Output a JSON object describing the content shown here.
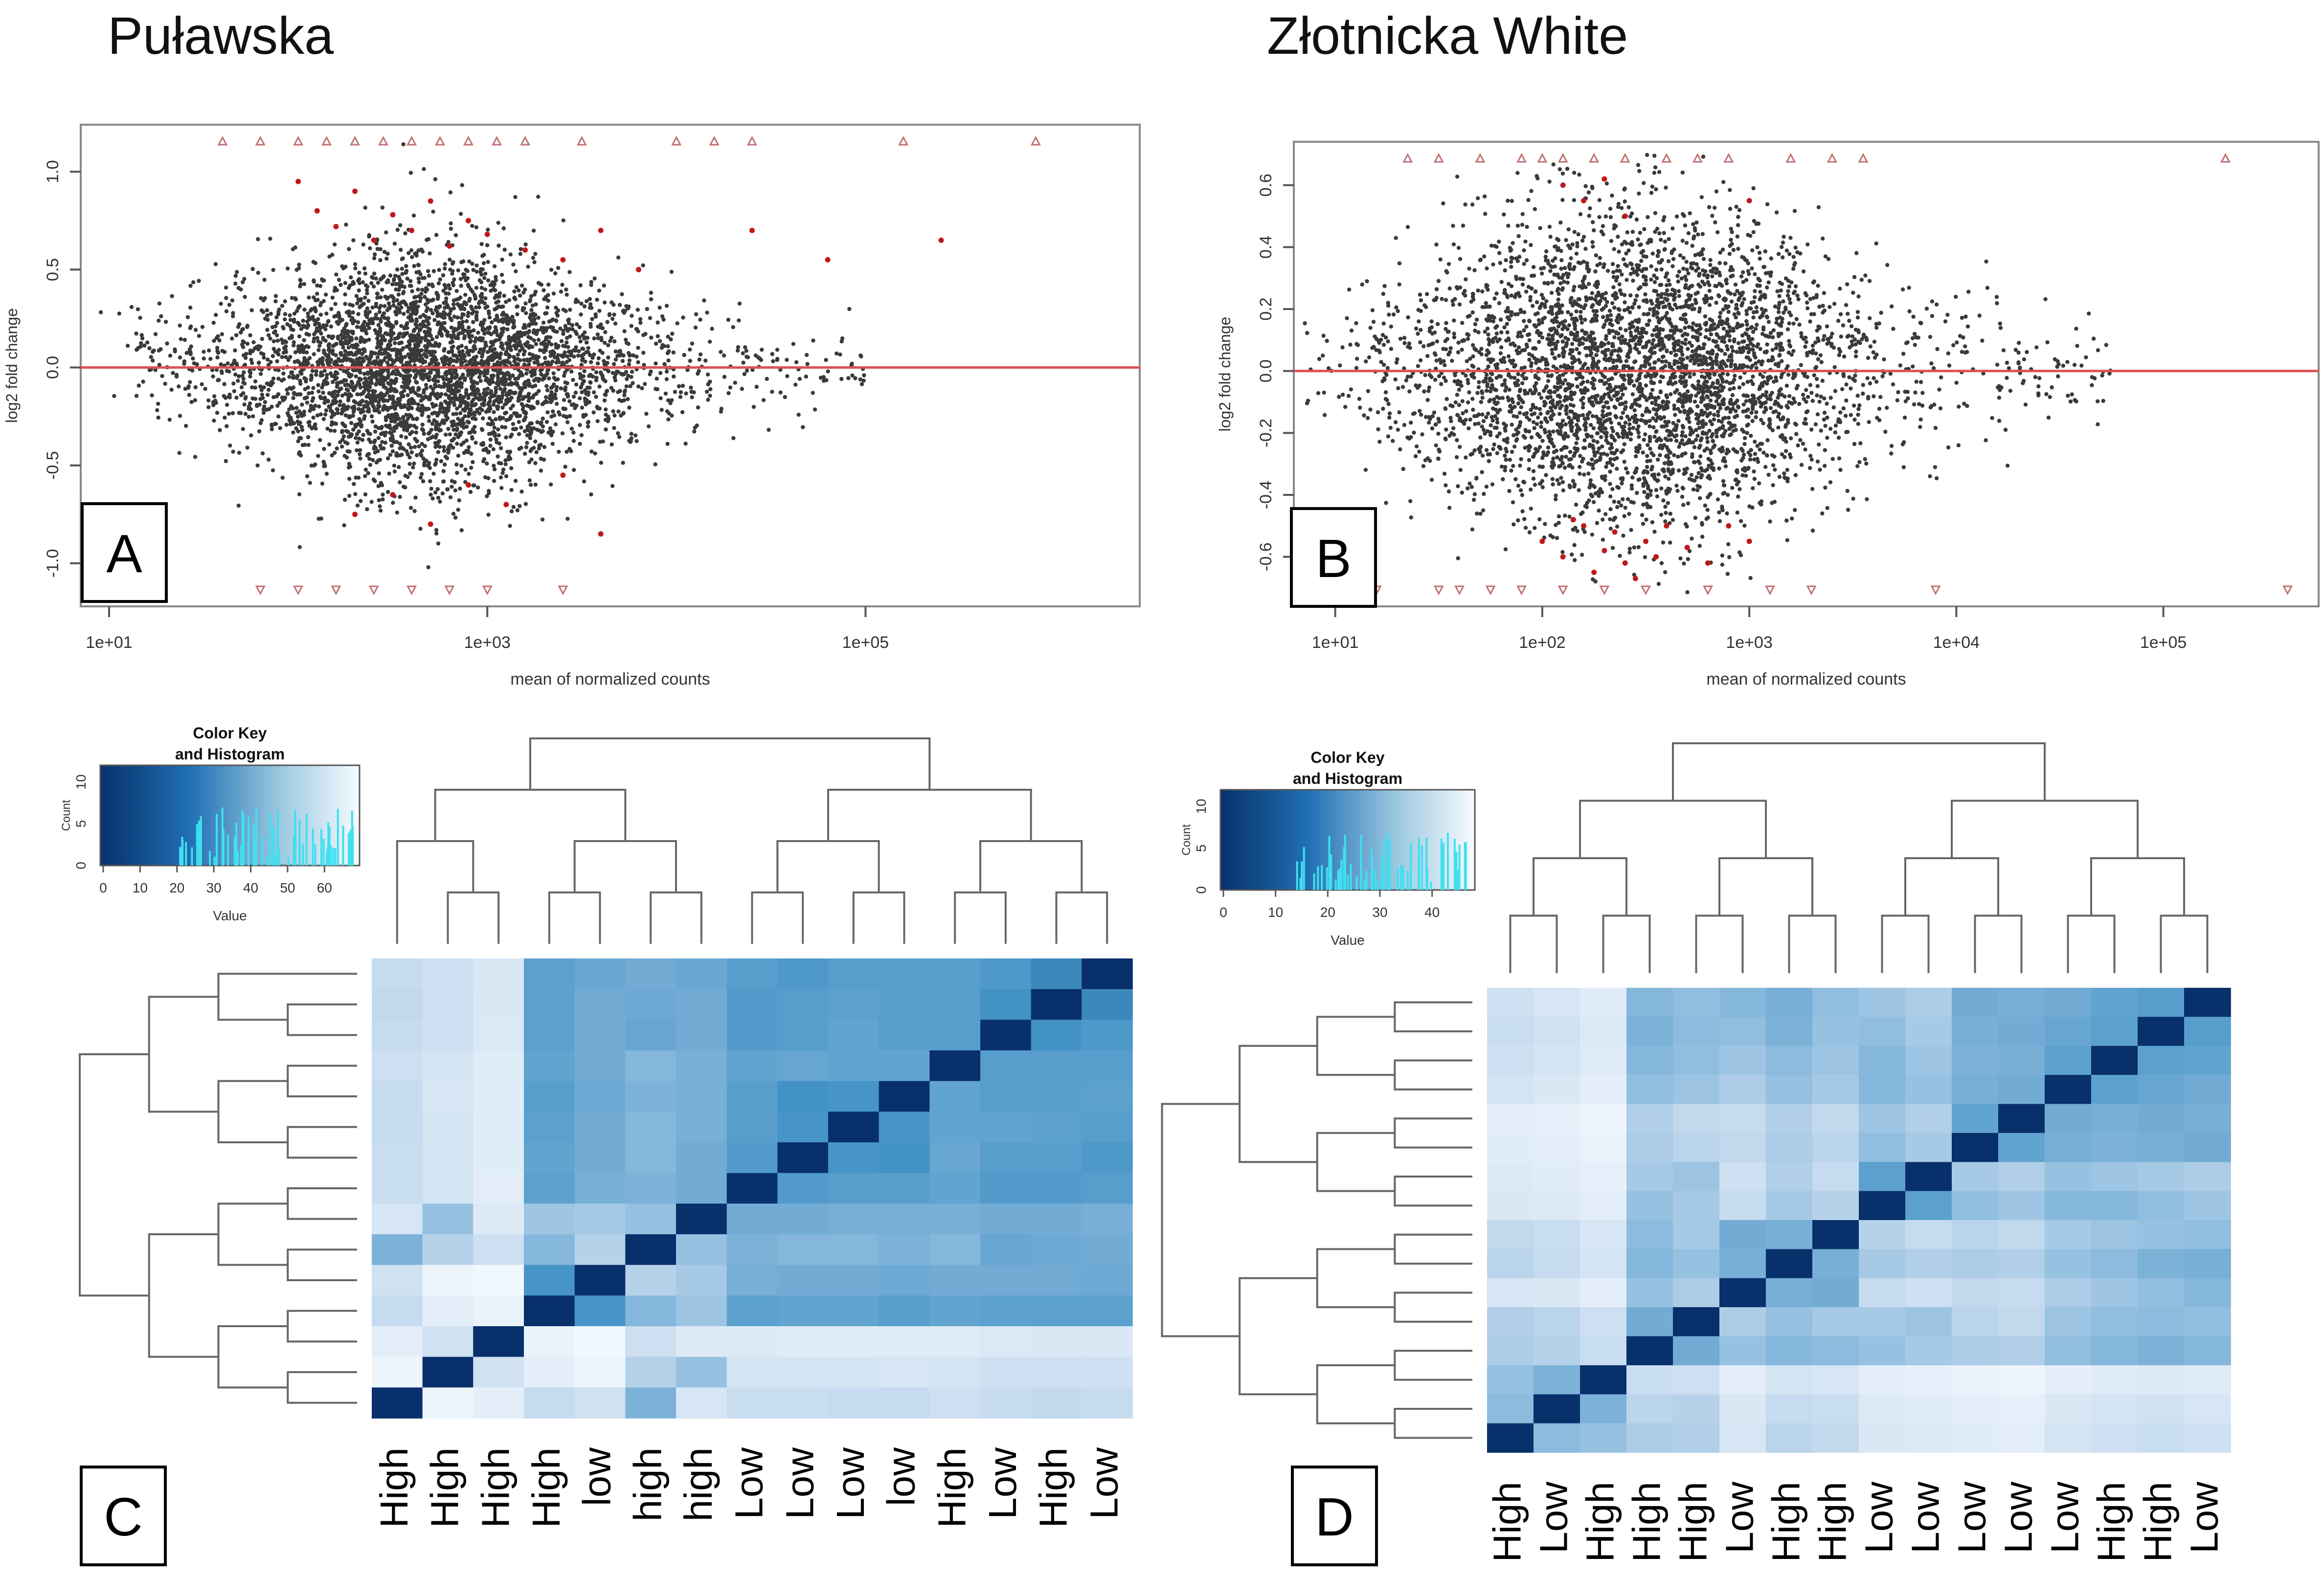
{
  "figure_titles": {
    "left": "Puławska",
    "right": "Złotnicka White"
  },
  "panel_letters": {
    "a": "A",
    "b": "B",
    "c": "C",
    "d": "D"
  },
  "colors": {
    "points": "#3a3a3a",
    "significant": "#c0181a",
    "hline": "#e05050",
    "heat_dark": "#08306b",
    "heat_light": "#f7fbff"
  },
  "chart_data": [
    {
      "id": "A",
      "type": "scatter",
      "title": "",
      "xlabel": "mean of normalized counts",
      "ylabel": "log2 fold change",
      "xscale": "log10",
      "xlim_log10": [
        0.85,
        6.45
      ],
      "ylim": [
        -1.22,
        1.24
      ],
      "x_ticks": [
        {
          "v": 1,
          "label": "1e+01"
        },
        {
          "v": 3,
          "label": "1e+03"
        },
        {
          "v": 5,
          "label": "1e+05"
        }
      ],
      "y_ticks": [
        {
          "v": -1.0,
          "label": "-1.0"
        },
        {
          "v": -0.5,
          "label": "-0.5"
        },
        {
          "v": 0.0,
          "label": "0.0"
        },
        {
          "v": 0.5,
          "label": "0.5"
        },
        {
          "v": 1.0,
          "label": "1.0"
        }
      ],
      "hline_y": 0,
      "cloud": {
        "center_log10": 2.7,
        "sd_log10": 0.55,
        "sd_y": 0.2,
        "n": 4200
      },
      "significant_up": [
        [
          2.0,
          0.95
        ],
        [
          2.1,
          0.8
        ],
        [
          2.2,
          0.72
        ],
        [
          2.3,
          0.9
        ],
        [
          2.4,
          0.65
        ],
        [
          2.5,
          0.78
        ],
        [
          2.6,
          0.7
        ],
        [
          2.7,
          0.85
        ],
        [
          2.8,
          0.62
        ],
        [
          2.9,
          0.75
        ],
        [
          3.0,
          0.68
        ],
        [
          3.2,
          0.6
        ],
        [
          3.4,
          0.55
        ],
        [
          3.6,
          0.7
        ],
        [
          3.8,
          0.5
        ],
        [
          4.4,
          0.7
        ],
        [
          4.8,
          0.55
        ],
        [
          5.4,
          0.65
        ]
      ],
      "significant_down": [
        [
          2.3,
          -0.75
        ],
        [
          2.5,
          -0.65
        ],
        [
          2.7,
          -0.8
        ],
        [
          2.9,
          -0.6
        ],
        [
          3.1,
          -0.7
        ],
        [
          3.4,
          -0.55
        ],
        [
          3.6,
          -0.85
        ]
      ],
      "outliers_top_log10": [
        1.6,
        1.8,
        2.0,
        2.15,
        2.3,
        2.45,
        2.6,
        2.75,
        2.9,
        3.05,
        3.2,
        3.5,
        4.0,
        4.2,
        4.4,
        5.2,
        5.9
      ],
      "outliers_bottom_log10": [
        1.8,
        2.0,
        2.2,
        2.4,
        2.6,
        2.8,
        3.0,
        3.4
      ]
    },
    {
      "id": "B",
      "type": "scatter",
      "title": "",
      "xlabel": "mean of normalized counts",
      "ylabel": "log2 fold change",
      "xscale": "log10",
      "xlim_log10": [
        0.8,
        5.75
      ],
      "ylim": [
        -0.76,
        0.74
      ],
      "x_ticks": [
        {
          "v": 1,
          "label": "1e+01"
        },
        {
          "v": 2,
          "label": "1e+02"
        },
        {
          "v": 3,
          "label": "1e+03"
        },
        {
          "v": 4,
          "label": "1e+04"
        },
        {
          "v": 5,
          "label": "1e+05"
        }
      ],
      "y_ticks": [
        {
          "v": -0.6,
          "label": "-0.6"
        },
        {
          "v": -0.4,
          "label": "-0.4"
        },
        {
          "v": -0.2,
          "label": "-0.2"
        },
        {
          "v": 0.0,
          "label": "0.0"
        },
        {
          "v": 0.2,
          "label": "0.2"
        },
        {
          "v": 0.4,
          "label": "0.4"
        },
        {
          "v": 0.6,
          "label": "0.6"
        }
      ],
      "hline_y": 0,
      "cloud": {
        "center_log10": 2.45,
        "sd_log10": 0.55,
        "sd_y": 0.18,
        "n": 4200
      },
      "significant_up": [
        [
          2.1,
          0.6
        ],
        [
          2.2,
          0.55
        ],
        [
          2.3,
          0.62
        ],
        [
          2.4,
          0.5
        ],
        [
          3.0,
          0.55
        ]
      ],
      "significant_down": [
        [
          2.0,
          -0.55
        ],
        [
          2.1,
          -0.6
        ],
        [
          2.2,
          -0.5
        ],
        [
          2.25,
          -0.65
        ],
        [
          2.3,
          -0.58
        ],
        [
          2.35,
          -0.52
        ],
        [
          2.4,
          -0.62
        ],
        [
          2.5,
          -0.55
        ],
        [
          2.55,
          -0.6
        ],
        [
          2.6,
          -0.5
        ],
        [
          2.7,
          -0.57
        ],
        [
          2.8,
          -0.62
        ],
        [
          2.9,
          -0.5
        ],
        [
          3.0,
          -0.55
        ],
        [
          2.15,
          -0.48
        ],
        [
          2.45,
          -0.67
        ]
      ],
      "outliers_top_log10": [
        1.35,
        1.5,
        1.7,
        1.9,
        2.0,
        2.1,
        2.25,
        2.4,
        2.6,
        2.75,
        2.9,
        3.2,
        3.4,
        3.55,
        5.3
      ],
      "outliers_bottom_log10": [
        1.2,
        1.5,
        1.6,
        1.75,
        1.9,
        2.1,
        2.3,
        2.5,
        2.8,
        3.1,
        3.3,
        3.9,
        5.6
      ]
    },
    {
      "id": "C",
      "type": "heatmap",
      "color_key": {
        "title": "Color Key",
        "subtitle": "and Histogram",
        "xlabel": "Value",
        "ylabel": "Count",
        "x_ticks": [
          "0",
          "10",
          "20",
          "30",
          "40",
          "50",
          "60"
        ],
        "y_ticks": [
          "0",
          "5",
          "10"
        ]
      },
      "column_labels": [
        "High",
        "High",
        "High",
        "High",
        "low",
        "high",
        "high",
        "Low",
        "Low",
        "Low",
        "low",
        "High",
        "Low",
        "High",
        "Low"
      ],
      "values": [
        [
          0.3,
          0.25,
          0.18,
          0.7,
          0.65,
          0.62,
          0.65,
          0.72,
          0.75,
          0.72,
          0.72,
          0.72,
          0.75,
          0.82,
          1.0
        ],
        [
          0.32,
          0.26,
          0.18,
          0.7,
          0.62,
          0.64,
          0.62,
          0.74,
          0.72,
          0.7,
          0.72,
          0.72,
          0.8,
          1.0,
          0.82
        ],
        [
          0.3,
          0.25,
          0.17,
          0.7,
          0.62,
          0.66,
          0.62,
          0.74,
          0.72,
          0.68,
          0.72,
          0.72,
          1.0,
          0.8,
          0.75
        ],
        [
          0.26,
          0.22,
          0.15,
          0.68,
          0.62,
          0.55,
          0.6,
          0.68,
          0.66,
          0.68,
          0.68,
          1.0,
          0.72,
          0.72,
          0.72
        ],
        [
          0.3,
          0.2,
          0.14,
          0.72,
          0.64,
          0.58,
          0.6,
          0.72,
          0.8,
          0.78,
          1.0,
          0.68,
          0.72,
          0.72,
          0.7
        ],
        [
          0.3,
          0.22,
          0.14,
          0.7,
          0.62,
          0.55,
          0.6,
          0.72,
          0.78,
          1.0,
          0.78,
          0.68,
          0.68,
          0.7,
          0.72
        ],
        [
          0.28,
          0.22,
          0.14,
          0.68,
          0.62,
          0.55,
          0.62,
          0.74,
          1.0,
          0.78,
          0.8,
          0.66,
          0.72,
          0.72,
          0.75
        ],
        [
          0.28,
          0.22,
          0.13,
          0.7,
          0.6,
          0.58,
          0.62,
          1.0,
          0.74,
          0.72,
          0.72,
          0.68,
          0.74,
          0.74,
          0.72
        ],
        [
          0.2,
          0.48,
          0.16,
          0.45,
          0.42,
          0.48,
          1.0,
          0.62,
          0.62,
          0.6,
          0.6,
          0.6,
          0.62,
          0.62,
          0.6
        ],
        [
          0.58,
          0.36,
          0.26,
          0.55,
          0.36,
          1.0,
          0.48,
          0.58,
          0.55,
          0.55,
          0.58,
          0.55,
          0.66,
          0.64,
          0.62
        ],
        [
          0.24,
          0.06,
          0.04,
          0.78,
          1.0,
          0.36,
          0.42,
          0.6,
          0.62,
          0.62,
          0.64,
          0.62,
          0.62,
          0.62,
          0.64
        ],
        [
          0.3,
          0.12,
          0.08,
          1.0,
          0.78,
          0.55,
          0.45,
          0.7,
          0.68,
          0.68,
          0.72,
          0.68,
          0.7,
          0.7,
          0.7
        ],
        [
          0.12,
          0.24,
          1.0,
          0.08,
          0.04,
          0.26,
          0.16,
          0.16,
          0.14,
          0.14,
          0.14,
          0.15,
          0.17,
          0.18,
          0.18
        ],
        [
          0.06,
          1.0,
          0.24,
          0.12,
          0.06,
          0.36,
          0.48,
          0.22,
          0.22,
          0.22,
          0.2,
          0.22,
          0.26,
          0.25,
          0.25
        ],
        [
          1.0,
          0.06,
          0.12,
          0.3,
          0.24,
          0.58,
          0.2,
          0.28,
          0.28,
          0.3,
          0.3,
          0.26,
          0.3,
          0.32,
          0.3
        ]
      ]
    },
    {
      "id": "D",
      "type": "heatmap",
      "color_key": {
        "title": "Color Key",
        "subtitle": "and Histogram",
        "xlabel": "Value",
        "ylabel": "Count",
        "x_ticks": [
          "0",
          "10",
          "20",
          "30",
          "40"
        ],
        "y_ticks": [
          "0",
          "5",
          "10"
        ]
      },
      "column_labels": [
        "High",
        "Low",
        "High",
        "High",
        "High",
        "Low",
        "High",
        "High",
        "Low",
        "Low",
        "Low",
        "Low",
        "Low",
        "High",
        "High",
        "Low"
      ],
      "values": [
        [
          0.25,
          0.2,
          0.15,
          0.55,
          0.5,
          0.55,
          0.6,
          0.5,
          0.45,
          0.4,
          0.62,
          0.6,
          0.62,
          0.68,
          0.72,
          1.0
        ],
        [
          0.28,
          0.24,
          0.16,
          0.58,
          0.52,
          0.5,
          0.58,
          0.48,
          0.5,
          0.42,
          0.6,
          0.62,
          0.66,
          0.7,
          1.0,
          0.72
        ],
        [
          0.26,
          0.22,
          0.15,
          0.55,
          0.5,
          0.45,
          0.52,
          0.46,
          0.55,
          0.45,
          0.58,
          0.6,
          0.7,
          1.0,
          0.7,
          0.68
        ],
        [
          0.22,
          0.18,
          0.12,
          0.5,
          0.46,
          0.4,
          0.48,
          0.42,
          0.55,
          0.48,
          0.6,
          0.62,
          1.0,
          0.7,
          0.66,
          0.62
        ],
        [
          0.12,
          0.1,
          0.06,
          0.38,
          0.32,
          0.3,
          0.38,
          0.32,
          0.45,
          0.38,
          0.68,
          1.0,
          0.62,
          0.6,
          0.62,
          0.6
        ],
        [
          0.14,
          0.12,
          0.08,
          0.4,
          0.35,
          0.32,
          0.4,
          0.35,
          0.5,
          0.42,
          1.0,
          0.68,
          0.6,
          0.58,
          0.6,
          0.62
        ],
        [
          0.16,
          0.14,
          0.1,
          0.42,
          0.46,
          0.25,
          0.38,
          0.3,
          0.7,
          1.0,
          0.42,
          0.38,
          0.48,
          0.45,
          0.42,
          0.4
        ],
        [
          0.18,
          0.16,
          0.12,
          0.48,
          0.42,
          0.3,
          0.42,
          0.36,
          1.0,
          0.7,
          0.5,
          0.45,
          0.55,
          0.55,
          0.5,
          0.45
        ],
        [
          0.32,
          0.28,
          0.2,
          0.52,
          0.42,
          0.62,
          0.6,
          1.0,
          0.36,
          0.3,
          0.35,
          0.32,
          0.42,
          0.46,
          0.48,
          0.5
        ],
        [
          0.35,
          0.3,
          0.22,
          0.55,
          0.48,
          0.6,
          1.0,
          0.6,
          0.42,
          0.38,
          0.4,
          0.38,
          0.48,
          0.52,
          0.58,
          0.6
        ],
        [
          0.2,
          0.18,
          0.12,
          0.48,
          0.4,
          1.0,
          0.6,
          0.62,
          0.3,
          0.25,
          0.32,
          0.3,
          0.4,
          0.45,
          0.5,
          0.55
        ],
        [
          0.38,
          0.34,
          0.26,
          0.62,
          1.0,
          0.4,
          0.48,
          0.42,
          0.42,
          0.46,
          0.35,
          0.32,
          0.46,
          0.5,
          0.52,
          0.5
        ],
        [
          0.4,
          0.36,
          0.28,
          1.0,
          0.62,
          0.48,
          0.55,
          0.52,
          0.48,
          0.42,
          0.4,
          0.38,
          0.5,
          0.55,
          0.58,
          0.55
        ],
        [
          0.48,
          0.58,
          1.0,
          0.28,
          0.26,
          0.12,
          0.22,
          0.2,
          0.12,
          0.1,
          0.08,
          0.06,
          0.12,
          0.15,
          0.16,
          0.15
        ],
        [
          0.52,
          1.0,
          0.58,
          0.34,
          0.36,
          0.18,
          0.3,
          0.28,
          0.16,
          0.14,
          0.12,
          0.1,
          0.18,
          0.22,
          0.24,
          0.2
        ],
        [
          1.0,
          0.52,
          0.48,
          0.4,
          0.38,
          0.2,
          0.35,
          0.32,
          0.18,
          0.16,
          0.14,
          0.12,
          0.22,
          0.26,
          0.28,
          0.25
        ]
      ]
    }
  ]
}
